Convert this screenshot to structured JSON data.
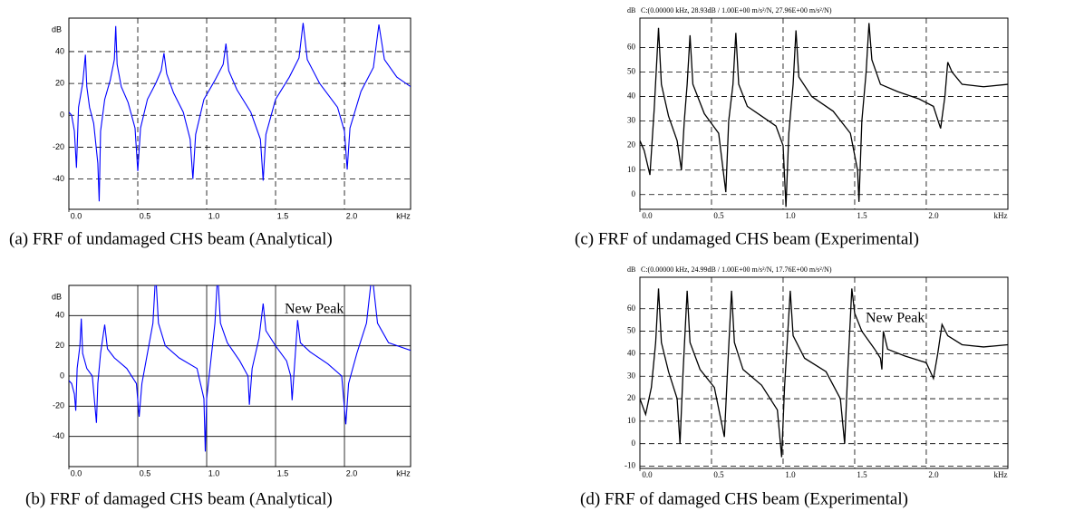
{
  "chart_data": [
    {
      "type": "line",
      "caption": "(a)  FRF of undamaged CHS beam (Analytical)",
      "ylabel": "dB",
      "xlabel": "kHz",
      "color": "#0000ff",
      "grid": "dashed",
      "xlim": [
        0,
        2.48
      ],
      "ylim": [
        -59,
        61
      ],
      "xticks": [
        {
          "value": 0,
          "label": "0.0"
        },
        0.5,
        {
          "value": 1,
          "label": "1.0"
        },
        1.5,
        {
          "value": 2,
          "label": "2.0"
        }
      ],
      "yticks": [
        -40,
        -20,
        0,
        20,
        40
      ],
      "x": [
        0,
        0.02,
        0.04,
        0.055,
        0.07,
        0.1,
        0.12,
        0.13,
        0.15,
        0.18,
        0.21,
        0.22,
        0.23,
        0.26,
        0.3,
        0.33,
        0.34,
        0.35,
        0.38,
        0.43,
        0.48,
        0.5,
        0.52,
        0.57,
        0.63,
        0.67,
        0.69,
        0.71,
        0.76,
        0.83,
        0.88,
        0.9,
        0.92,
        0.98,
        1.06,
        1.12,
        1.14,
        1.16,
        1.22,
        1.32,
        1.39,
        1.41,
        1.43,
        1.5,
        1.6,
        1.67,
        1.7,
        1.73,
        1.82,
        1.95,
        2.0,
        2.02,
        2.04,
        2.12,
        2.21,
        2.25,
        2.29,
        2.38,
        2.48
      ],
      "values": [
        2,
        0,
        -10,
        -33,
        5,
        20,
        38,
        18,
        5,
        -5,
        -30,
        -54,
        -10,
        10,
        22,
        35,
        56,
        32,
        18,
        8,
        -8,
        -35,
        -8,
        10,
        20,
        28,
        39,
        26,
        14,
        2,
        -15,
        -40,
        -12,
        10,
        22,
        32,
        45,
        28,
        16,
        2,
        -15,
        -41,
        -12,
        10,
        24,
        36,
        58,
        35,
        20,
        5,
        -10,
        -34,
        -8,
        15,
        30,
        57,
        35,
        24,
        18
      ]
    },
    {
      "type": "line",
      "caption": "(b)  FRF of damaged CHS beam (Analytical)",
      "ylabel": "dB",
      "xlabel": "kHz",
      "color": "#0000ff",
      "grid": "solid",
      "annotation": "New Peak",
      "xlim": [
        0,
        2.48
      ],
      "ylim": [
        -60,
        60
      ],
      "xticks": [
        {
          "value": 0,
          "label": "0.0"
        },
        0.5,
        {
          "value": 1,
          "label": "1.0"
        },
        1.5,
        {
          "value": 2,
          "label": "2.0"
        }
      ],
      "yticks": [
        -40,
        -20,
        0,
        20,
        40
      ],
      "x": [
        0,
        0.02,
        0.04,
        0.05,
        0.06,
        0.08,
        0.09,
        0.1,
        0.13,
        0.17,
        0.2,
        0.21,
        0.23,
        0.26,
        0.28,
        0.33,
        0.42,
        0.49,
        0.51,
        0.53,
        0.57,
        0.61,
        0.63,
        0.65,
        0.7,
        0.8,
        0.93,
        0.98,
        0.99,
        1.0,
        1.03,
        1.06,
        1.08,
        1.1,
        1.15,
        1.24,
        1.3,
        1.31,
        1.33,
        1.38,
        1.41,
        1.43,
        1.5,
        1.58,
        1.61,
        1.62,
        1.64,
        1.66,
        1.68,
        1.75,
        1.88,
        1.98,
        2.01,
        2.03,
        2.09,
        2.16,
        2.2,
        2.24,
        2.32,
        2.48
      ],
      "values": [
        -3,
        -5,
        -12,
        -23,
        5,
        20,
        38,
        15,
        5,
        0,
        -31,
        -5,
        15,
        34,
        18,
        12,
        5,
        -5,
        -27,
        -5,
        15,
        35,
        68,
        35,
        20,
        12,
        5,
        -15,
        -50,
        -15,
        10,
        35,
        68,
        35,
        22,
        10,
        0,
        -19,
        5,
        25,
        48,
        30,
        20,
        10,
        0,
        -16,
        10,
        37,
        22,
        16,
        8,
        0,
        -32,
        -5,
        15,
        35,
        68,
        35,
        22,
        17
      ]
    },
    {
      "type": "line",
      "caption": "(c) FRF of undamaged CHS beam (Experimental)",
      "ylabel": "dB",
      "header": "C:(0.00000  kHz, 28.93dB / 1.00E+00 m/s²/N, 27.96E+00    m/s²/N)",
      "xlabel": "kHz",
      "color": "#000000",
      "grid": "dashed",
      "xlim": [
        0,
        2.57
      ],
      "ylim": [
        -6,
        72
      ],
      "xticks": [
        {
          "value": 0,
          "label": "0.0"
        },
        0.5,
        {
          "value": 1,
          "label": "1.0"
        },
        1.5,
        {
          "value": 2,
          "label": "2.0"
        }
      ],
      "yticks": [
        0,
        10,
        20,
        30,
        40,
        50,
        60
      ],
      "x": [
        0,
        0.03,
        0.07,
        0.1,
        0.13,
        0.15,
        0.2,
        0.26,
        0.29,
        0.31,
        0.33,
        0.35,
        0.37,
        0.45,
        0.55,
        0.6,
        0.62,
        0.65,
        0.67,
        0.69,
        0.75,
        0.85,
        0.95,
        1.0,
        1.02,
        1.04,
        1.07,
        1.09,
        1.11,
        1.2,
        1.35,
        1.47,
        1.52,
        1.53,
        1.55,
        1.58,
        1.6,
        1.62,
        1.68,
        1.8,
        1.95,
        2.05,
        2.1,
        2.13,
        2.15,
        2.18,
        2.25,
        2.4,
        2.57
      ],
      "values": [
        22,
        18,
        8,
        35,
        68,
        45,
        32,
        22,
        10,
        30,
        45,
        65,
        45,
        33,
        25,
        1,
        30,
        45,
        66,
        45,
        36,
        32,
        28,
        20,
        -5,
        25,
        45,
        67,
        48,
        40,
        34,
        25,
        10,
        -3,
        30,
        50,
        70,
        55,
        45,
        42,
        39,
        36,
        27,
        40,
        54,
        50,
        45,
        44,
        45
      ]
    },
    {
      "type": "line",
      "caption": "(d) FRF of damaged CHS beam (Experimental)",
      "ylabel": "dB",
      "header": "C:(0.00000  kHz, 24.99dB / 1.00E+00 m/s²/N, 17.76E+00    m/s²/N)",
      "xlabel": "kHz",
      "color": "#000000",
      "grid": "dashed",
      "annotation": "New Peak",
      "xlim": [
        0,
        2.57
      ],
      "ylim": [
        -11,
        74
      ],
      "xticks": [
        {
          "value": 0,
          "label": "0.0"
        },
        0.5,
        {
          "value": 1,
          "label": "1.0"
        },
        1.5,
        {
          "value": 2,
          "label": "2.0"
        }
      ],
      "yticks": [
        -10,
        0,
        10,
        20,
        30,
        40,
        50,
        60
      ],
      "x": [
        0,
        0.04,
        0.08,
        0.11,
        0.13,
        0.15,
        0.2,
        0.26,
        0.28,
        0.3,
        0.33,
        0.35,
        0.42,
        0.52,
        0.59,
        0.61,
        0.64,
        0.66,
        0.72,
        0.85,
        0.96,
        0.99,
        1.01,
        1.05,
        1.07,
        1.15,
        1.3,
        1.4,
        1.43,
        1.45,
        1.48,
        1.5,
        1.55,
        1.64,
        1.68,
        1.69,
        1.7,
        1.73,
        1.85,
        2.0,
        2.05,
        2.08,
        2.11,
        2.15,
        2.25,
        2.4,
        2.57
      ],
      "values": [
        20,
        13,
        25,
        45,
        69,
        45,
        32,
        20,
        0,
        30,
        68,
        45,
        33,
        25,
        3,
        30,
        68,
        45,
        33,
        26,
        15,
        -6,
        25,
        68,
        48,
        38,
        32,
        20,
        0,
        30,
        69,
        58,
        50,
        42,
        38,
        33,
        50,
        42,
        39,
        36,
        29,
        40,
        53,
        48,
        44,
        43,
        44
      ]
    }
  ]
}
